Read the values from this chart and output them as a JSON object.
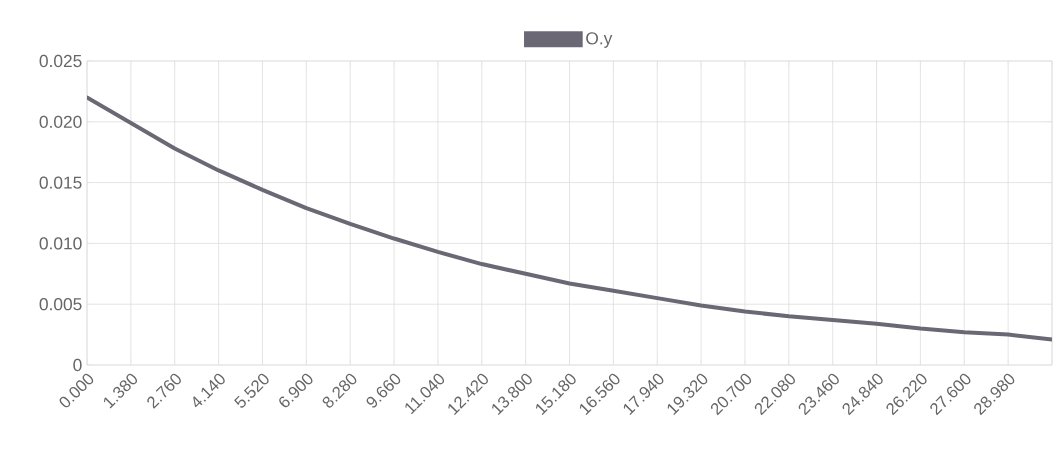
{
  "chart_data": {
    "type": "line",
    "x": [
      0,
      1.38,
      2.76,
      4.14,
      5.52,
      6.9,
      8.28,
      9.66,
      11.04,
      12.42,
      13.8,
      15.18,
      16.56,
      17.94,
      19.32,
      20.7,
      22.08,
      23.46,
      24.84,
      26.22,
      27.6,
      28.98,
      30.36
    ],
    "series": [
      {
        "name": "O.y",
        "color": "#6b6875",
        "values": [
          0.022,
          0.0199,
          0.0178,
          0.016,
          0.0144,
          0.0129,
          0.0116,
          0.0104,
          0.0093,
          0.0083,
          0.0075,
          0.0067,
          0.0061,
          0.0055,
          0.0049,
          0.0044,
          0.004,
          0.0037,
          0.0034,
          0.003,
          0.0027,
          0.0025,
          0.0021
        ]
      }
    ],
    "xlim": [
      0,
      30.36
    ],
    "xticks": [
      {
        "value": 0,
        "label": "0.000"
      },
      {
        "value": 1.38,
        "label": "1.380"
      },
      {
        "value": 2.76,
        "label": "2.760"
      },
      {
        "value": 4.14,
        "label": "4.140"
      },
      {
        "value": 5.52,
        "label": "5.520"
      },
      {
        "value": 6.9,
        "label": "6.900"
      },
      {
        "value": 8.28,
        "label": "8.280"
      },
      {
        "value": 9.66,
        "label": "9.660"
      },
      {
        "value": 11.04,
        "label": "11.040"
      },
      {
        "value": 12.42,
        "label": "12.420"
      },
      {
        "value": 13.8,
        "label": "13.800"
      },
      {
        "value": 15.18,
        "label": "15.180"
      },
      {
        "value": 16.56,
        "label": "16.560"
      },
      {
        "value": 17.94,
        "label": "17.940"
      },
      {
        "value": 19.32,
        "label": "19.320"
      },
      {
        "value": 20.7,
        "label": "20.700"
      },
      {
        "value": 22.08,
        "label": "22.080"
      },
      {
        "value": 23.46,
        "label": "23.460"
      },
      {
        "value": 24.84,
        "label": "24.840"
      },
      {
        "value": 26.22,
        "label": "26.220"
      },
      {
        "value": 27.6,
        "label": "27.600"
      },
      {
        "value": 28.98,
        "label": "28.980"
      },
      {
        "value": 30.36,
        "label": null
      }
    ],
    "ylim": [
      0,
      0.025
    ],
    "yticks": [
      0,
      {
        "value": 0.005,
        "label": "0.005"
      },
      {
        "value": 0.01,
        "label": "0.010"
      },
      {
        "value": 0.015,
        "label": "0.015"
      },
      {
        "value": 0.02,
        "label": "0.020"
      },
      {
        "value": 0.025,
        "label": "0.025"
      }
    ],
    "grid": true,
    "legend": "top",
    "marker": "none",
    "line_style": "solid"
  }
}
